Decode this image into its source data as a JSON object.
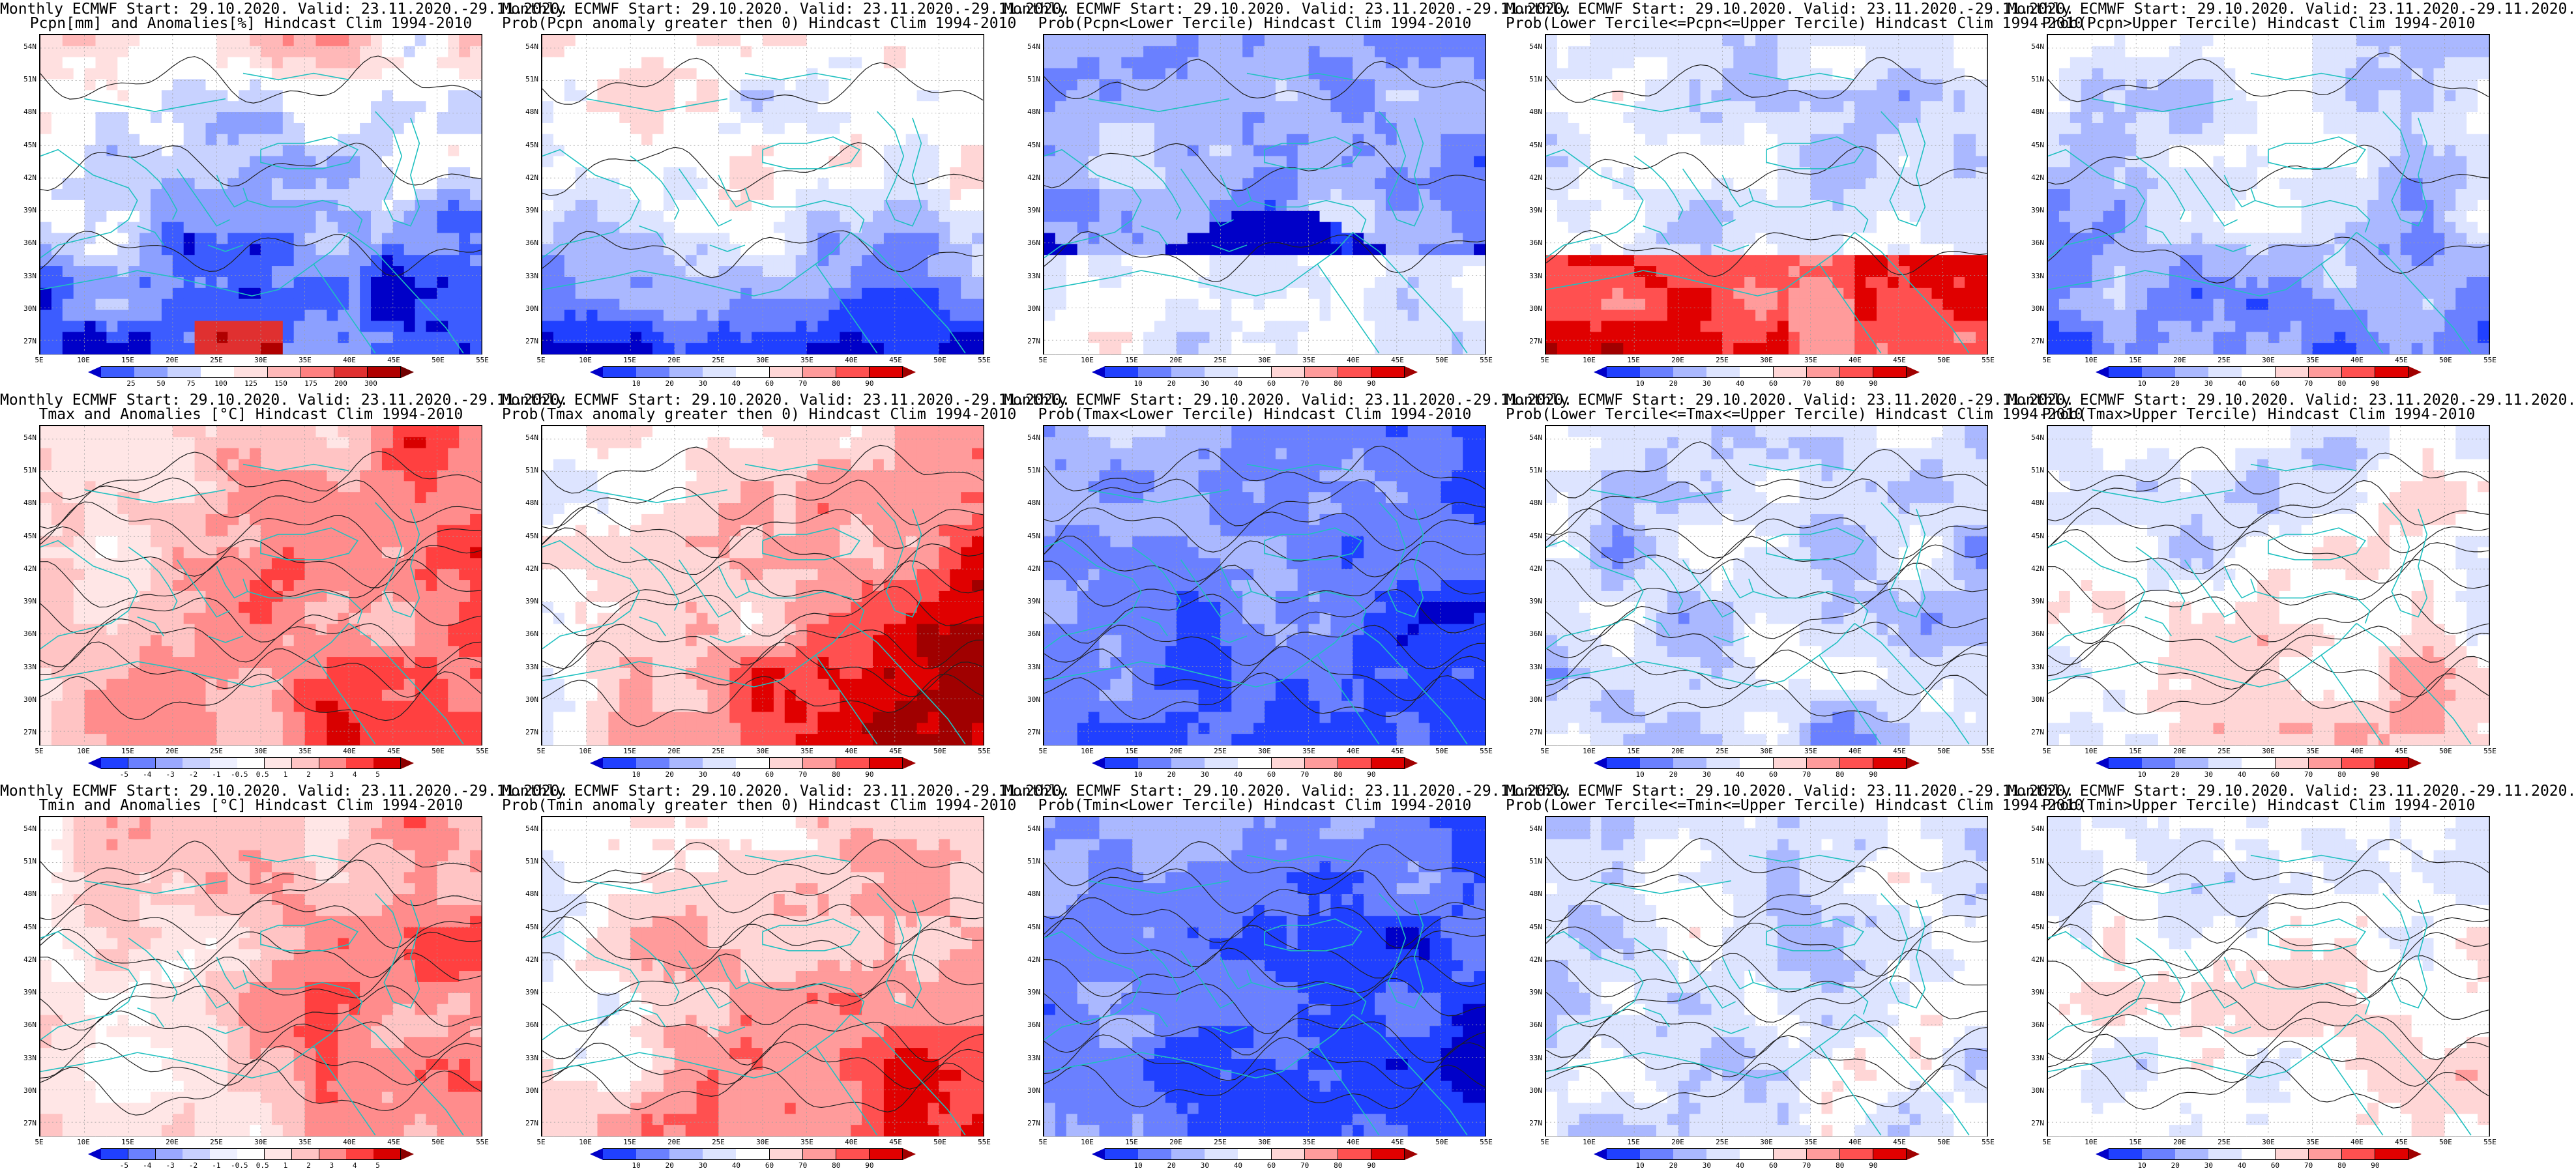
{
  "rows": [
    {
      "panels": [
        {
          "title1": "Monthly ECMWF Start: 29.10.2020. Valid: 23.11.2020.-29.11.2020.",
          "title2": "Pcpn[mm] and Anomalies[%] Hindcast Clim 1994-2010",
          "field": "pcpn_anom",
          "scheme": "pcpn",
          "colorbar": [
            "25",
            "50",
            "75",
            "100",
            "125",
            "150",
            "175",
            "200",
            "300"
          ]
        },
        {
          "title1": "Monthly ECMWF Start: 29.10.2020. Valid: 23.11.2020.-29.11.2020.",
          "title2": "Prob(Pcpn anomaly greater then 0) Hindcast Clim 1994-2010",
          "field": "pcpn_prob_pos",
          "scheme": "prob",
          "colorbar": [
            "10",
            "20",
            "30",
            "40",
            "60",
            "70",
            "80",
            "90"
          ]
        },
        {
          "title1": "Monthly ECMWF Start: 29.10.2020. Valid: 23.11.2020.-29.11.2020.",
          "title2": "Prob(Pcpn<Lower Tercile) Hindcast Clim 1994-2010",
          "field": "pcpn_lower",
          "scheme": "prob",
          "colorbar": [
            "10",
            "20",
            "30",
            "40",
            "60",
            "70",
            "80",
            "90"
          ]
        },
        {
          "title1": "Monthly ECMWF Start: 29.10.2020. Valid: 23.11.2020.-29.11.2020.",
          "title2": "Prob(Lower Tercile<=Pcpn<=Upper Tercile) Hindcast Clim 1994-2010",
          "field": "pcpn_middle",
          "scheme": "prob",
          "colorbar": [
            "10",
            "20",
            "30",
            "40",
            "60",
            "70",
            "80",
            "90"
          ]
        },
        {
          "title1": "Monthly ECMWF Start: 29.10.2020. Valid: 23.11.2020.-29.11.2020.",
          "title2": "Prob(Pcpn>Upper Tercile) Hindcast Clim 1994-2010",
          "field": "pcpn_upper",
          "scheme": "prob",
          "colorbar": [
            "10",
            "20",
            "30",
            "40",
            "60",
            "70",
            "80",
            "90"
          ]
        }
      ]
    },
    {
      "panels": [
        {
          "title1": "Monthly ECMWF Start: 29.10.2020. Valid: 23.11.2020.-29.11.2020.",
          "title2": "Tmax and Anomalies [°C] Hindcast Clim 1994-2010",
          "field": "tmax_anom",
          "scheme": "anom",
          "colorbar": [
            "-5",
            "-4",
            "-3",
            "-2",
            "-1",
            "-0.5",
            "0.5",
            "1",
            "2",
            "3",
            "4",
            "5"
          ]
        },
        {
          "title1": "Monthly ECMWF Start: 29.10.2020. Valid: 23.11.2020.-29.11.2020.",
          "title2": "Prob(Tmax anomaly greater then 0) Hindcast Clim 1994-2010",
          "field": "tmax_prob_pos",
          "scheme": "prob",
          "colorbar": [
            "10",
            "20",
            "30",
            "40",
            "60",
            "70",
            "80",
            "90"
          ]
        },
        {
          "title1": "Monthly ECMWF Start: 29.10.2020. Valid: 23.11.2020.-29.11.2020.",
          "title2": "Prob(Tmax<Lower Tercile) Hindcast Clim 1994-2010",
          "field": "tmax_lower",
          "scheme": "prob",
          "colorbar": [
            "10",
            "20",
            "30",
            "40",
            "60",
            "70",
            "80",
            "90"
          ]
        },
        {
          "title1": "Monthly ECMWF Start: 29.10.2020. Valid: 23.11.2020.-29.11.2020.",
          "title2": "Prob(Lower Tercile<=Tmax<=Upper Tercile) Hindcast Clim 1994-2010",
          "field": "tmax_middle",
          "scheme": "prob",
          "colorbar": [
            "10",
            "20",
            "30",
            "40",
            "60",
            "70",
            "80",
            "90"
          ]
        },
        {
          "title1": "Monthly ECMWF Start: 29.10.2020. Valid: 23.11.2020.-29.11.2020.",
          "title2": "Prob(Tmax>Upper Tercile) Hindcast Clim 1994-2010",
          "field": "tmax_upper",
          "scheme": "prob",
          "colorbar": [
            "10",
            "20",
            "30",
            "40",
            "60",
            "70",
            "80",
            "90"
          ]
        }
      ]
    },
    {
      "panels": [
        {
          "title1": "Monthly ECMWF Start: 29.10.2020. Valid: 23.11.2020.-29.11.2020.",
          "title2": "Tmin and Anomalies [°C] Hindcast Clim 1994-2010",
          "field": "tmin_anom",
          "scheme": "anom",
          "colorbar": [
            "-5",
            "-4",
            "-3",
            "-2",
            "-1",
            "-0.5",
            "0.5",
            "1",
            "2",
            "3",
            "4",
            "5"
          ]
        },
        {
          "title1": "Monthly ECMWF Start: 29.10.2020. Valid: 23.11.2020.-29.11.2020.",
          "title2": "Prob(Tmin anomaly greater then 0) Hindcast Clim 1994-2010",
          "field": "tmin_prob_pos",
          "scheme": "prob",
          "colorbar": [
            "10",
            "20",
            "30",
            "40",
            "60",
            "70",
            "80",
            "90"
          ]
        },
        {
          "title1": "Monthly ECMWF Start: 29.10.2020. Valid: 23.11.2020.-29.11.2020.",
          "title2": "Prob(Tmin<Lower Tercile) Hindcast Clim 1994-2010",
          "field": "tmin_lower",
          "scheme": "prob",
          "colorbar": [
            "10",
            "20",
            "30",
            "40",
            "60",
            "70",
            "80",
            "90"
          ]
        },
        {
          "title1": "Monthly ECMWF Start: 29.10.2020. Valid: 23.11.2020.-29.11.2020.",
          "title2": "Prob(Lower Tercile<=Tmin<=Upper Tercile) Hindcast Clim 1994-2010",
          "field": "tmin_middle",
          "scheme": "prob",
          "colorbar": [
            "10",
            "20",
            "30",
            "40",
            "60",
            "70",
            "80",
            "90"
          ]
        },
        {
          "title1": "Monthly ECMWF Start: 29.10.2020. Valid: 23.11.2020.-29.11.2020.",
          "title2": "Prob(Tmin>Upper Tercile) Hindcast Clim 1994-2010",
          "field": "tmin_upper",
          "scheme": "prob",
          "colorbar": [
            "10",
            "20",
            "30",
            "40",
            "60",
            "70",
            "80",
            "90"
          ]
        }
      ]
    }
  ],
  "lat_labels": [
    "54N",
    "51N",
    "48N",
    "45N",
    "42N",
    "39N",
    "36N",
    "33N",
    "30N",
    "27N"
  ],
  "lon_labels": [
    "5E",
    "10E",
    "15E",
    "20E",
    "25E",
    "30E",
    "35E",
    "40E",
    "45E",
    "50E",
    "55E"
  ],
  "palettes": {
    "prob": [
      "#0000c8",
      "#2040ff",
      "#6a80ff",
      "#aab8ff",
      "#dde4ff",
      "#ffffff",
      "#ffd6d6",
      "#ff9b9b",
      "#ff5050",
      "#e00000",
      "#a00000"
    ],
    "anom": [
      "#0000c8",
      "#2040ff",
      "#6a80ff",
      "#9aa8ff",
      "#c8d0ff",
      "#eef0ff",
      "#ffffff",
      "#ffe6e6",
      "#ffc4c4",
      "#ff8c8c",
      "#ff4040",
      "#d80000",
      "#8c0000"
    ],
    "pcpn": [
      "#0000c8",
      "#3c5cff",
      "#8ca0ff",
      "#c8d2ff",
      "#ffffff",
      "#ffe0e0",
      "#ffb8b8",
      "#ff8080",
      "#e03030",
      "#b00000",
      "#700000"
    ]
  },
  "colors": {
    "coast": "#20c0c0",
    "contour": "#202020",
    "grid": "#a0a0a0"
  }
}
